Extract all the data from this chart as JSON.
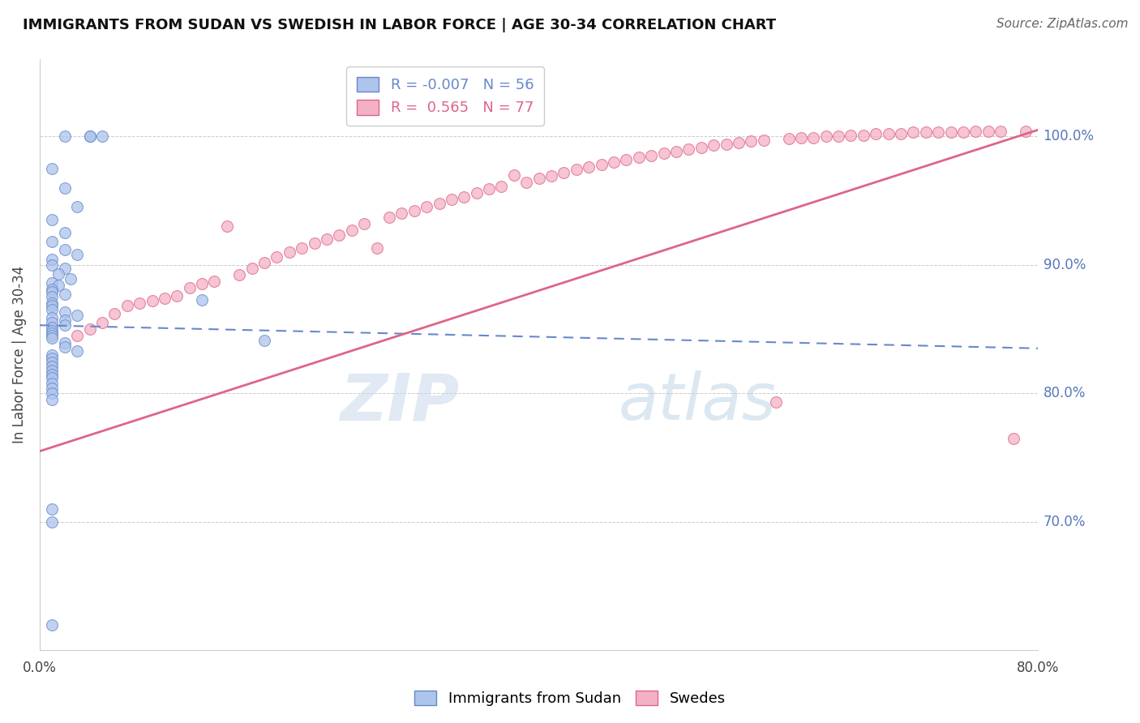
{
  "title": "IMMIGRANTS FROM SUDAN VS SWEDISH IN LABOR FORCE | AGE 30-34 CORRELATION CHART",
  "source": "Source: ZipAtlas.com",
  "ylabel": "In Labor Force | Age 30-34",
  "ytick_labels": [
    "100.0%",
    "90.0%",
    "80.0%",
    "70.0%"
  ],
  "ytick_values": [
    1.0,
    0.9,
    0.8,
    0.7
  ],
  "xlim": [
    0.0,
    0.8
  ],
  "ylim": [
    0.6,
    1.06
  ],
  "legend_blue_R": "-0.007",
  "legend_blue_N": "56",
  "legend_pink_R": "0.565",
  "legend_pink_N": "77",
  "blue_color": "#adc4ec",
  "pink_color": "#f4b0c4",
  "blue_line_color": "#6688cc",
  "pink_line_color": "#dd6688",
  "watermark_zip": "ZIP",
  "watermark_atlas": "atlas",
  "blue_scatter_x": [
    0.02,
    0.04,
    0.04,
    0.05,
    0.01,
    0.02,
    0.03,
    0.01,
    0.02,
    0.01,
    0.02,
    0.03,
    0.01,
    0.01,
    0.02,
    0.015,
    0.025,
    0.01,
    0.015,
    0.01,
    0.01,
    0.02,
    0.01,
    0.13,
    0.01,
    0.01,
    0.01,
    0.02,
    0.03,
    0.01,
    0.02,
    0.01,
    0.02,
    0.01,
    0.01,
    0.01,
    0.01,
    0.01,
    0.18,
    0.02,
    0.02,
    0.03,
    0.01,
    0.01,
    0.01,
    0.01,
    0.01,
    0.01,
    0.01,
    0.01,
    0.01,
    0.01,
    0.01,
    0.01,
    0.01,
    0.01
  ],
  "blue_scatter_y": [
    1.0,
    1.0,
    1.0,
    1.0,
    0.975,
    0.96,
    0.945,
    0.935,
    0.925,
    0.918,
    0.912,
    0.908,
    0.904,
    0.9,
    0.897,
    0.893,
    0.889,
    0.886,
    0.884,
    0.881,
    0.879,
    0.877,
    0.875,
    0.873,
    0.87,
    0.868,
    0.865,
    0.863,
    0.861,
    0.859,
    0.857,
    0.855,
    0.853,
    0.851,
    0.849,
    0.847,
    0.845,
    0.843,
    0.841,
    0.839,
    0.836,
    0.833,
    0.83,
    0.827,
    0.824,
    0.821,
    0.818,
    0.815,
    0.812,
    0.808,
    0.804,
    0.8,
    0.795,
    0.71,
    0.7,
    0.62
  ],
  "pink_scatter_x": [
    0.03,
    0.04,
    0.05,
    0.06,
    0.07,
    0.08,
    0.09,
    0.1,
    0.11,
    0.12,
    0.13,
    0.14,
    0.15,
    0.16,
    0.17,
    0.18,
    0.19,
    0.2,
    0.21,
    0.22,
    0.23,
    0.24,
    0.25,
    0.26,
    0.27,
    0.28,
    0.29,
    0.3,
    0.31,
    0.32,
    0.33,
    0.34,
    0.35,
    0.36,
    0.37,
    0.38,
    0.39,
    0.4,
    0.41,
    0.42,
    0.43,
    0.44,
    0.45,
    0.46,
    0.47,
    0.48,
    0.49,
    0.5,
    0.51,
    0.52,
    0.53,
    0.54,
    0.55,
    0.56,
    0.57,
    0.58,
    0.59,
    0.6,
    0.61,
    0.62,
    0.63,
    0.64,
    0.65,
    0.66,
    0.67,
    0.68,
    0.69,
    0.7,
    0.71,
    0.72,
    0.73,
    0.74,
    0.75,
    0.76,
    0.77,
    0.78,
    0.79
  ],
  "pink_scatter_y": [
    0.845,
    0.85,
    0.855,
    0.862,
    0.868,
    0.87,
    0.872,
    0.874,
    0.876,
    0.882,
    0.885,
    0.887,
    0.93,
    0.892,
    0.897,
    0.902,
    0.906,
    0.91,
    0.913,
    0.917,
    0.92,
    0.923,
    0.927,
    0.932,
    0.913,
    0.937,
    0.94,
    0.942,
    0.945,
    0.948,
    0.951,
    0.953,
    0.956,
    0.959,
    0.961,
    0.97,
    0.964,
    0.967,
    0.969,
    0.972,
    0.974,
    0.976,
    0.978,
    0.98,
    0.982,
    0.984,
    0.985,
    0.987,
    0.988,
    0.99,
    0.991,
    0.993,
    0.994,
    0.995,
    0.996,
    0.997,
    0.793,
    0.998,
    0.999,
    0.999,
    1.0,
    1.0,
    1.001,
    1.001,
    1.002,
    1.002,
    1.002,
    1.003,
    1.003,
    1.003,
    1.003,
    1.003,
    1.004,
    1.004,
    1.004,
    0.765,
    1.004
  ],
  "blue_trendline_x": [
    0.0,
    0.8
  ],
  "blue_trendline_y": [
    0.853,
    0.835
  ],
  "pink_trendline_x": [
    0.0,
    0.8
  ],
  "pink_trendline_y": [
    0.755,
    1.005
  ]
}
